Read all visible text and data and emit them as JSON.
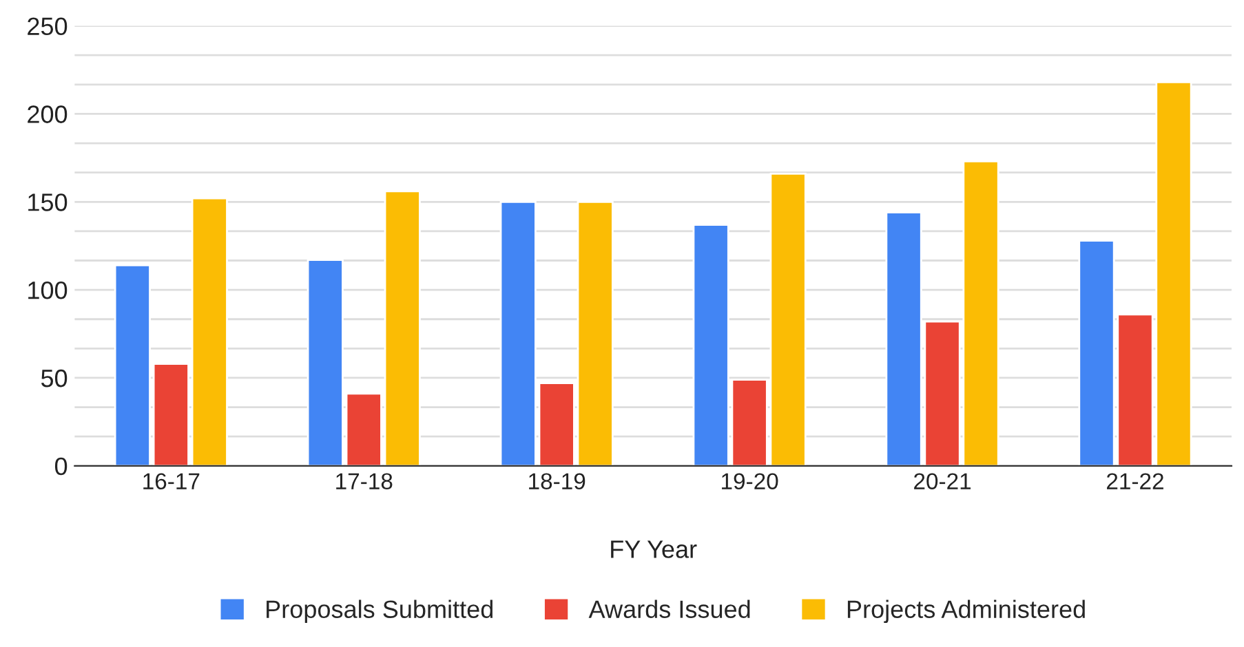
{
  "chart_data": {
    "type": "bar",
    "xlabel": "FY Year",
    "categories": [
      "16-17",
      "17-18",
      "18-19",
      "19-20",
      "20-21",
      "21-22"
    ],
    "series": [
      {
        "name": "Proposals Submitted",
        "color": "#4285f4",
        "values": [
          114,
          117,
          150,
          137,
          144,
          128
        ]
      },
      {
        "name": "Awards Issued",
        "color": "#ea4335",
        "values": [
          58,
          41,
          47,
          49,
          82,
          86
        ]
      },
      {
        "name": "Projects Administered",
        "color": "#fbbc04",
        "values": [
          152,
          156,
          150,
          166,
          173,
          218
        ]
      }
    ],
    "ylim": [
      0,
      250
    ],
    "yticks": [
      0,
      {
        "value": 16.67,
        "label": null
      },
      {
        "value": 33.33,
        "label": null
      },
      50,
      {
        "value": 66.67,
        "label": null
      },
      {
        "value": 83.33,
        "label": null
      },
      100,
      {
        "value": 116.67,
        "label": null
      },
      {
        "value": 133.33,
        "label": null
      },
      150,
      {
        "value": 166.67,
        "label": null
      },
      {
        "value": 183.33,
        "label": null
      },
      200,
      {
        "value": 216.67,
        "label": null
      },
      {
        "value": 233.33,
        "label": null
      },
      250
    ],
    "grid": "y",
    "legend": "bottom"
  }
}
